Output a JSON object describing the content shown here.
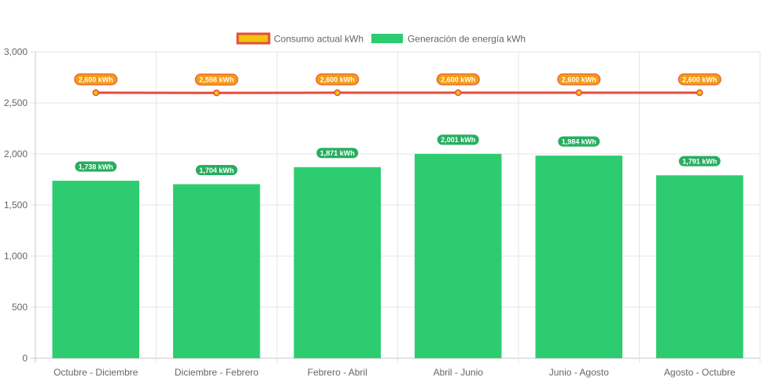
{
  "chart_data": {
    "type": "bar",
    "categories": [
      "Octubre - Diciembre",
      "Diciembre - Febrero",
      "Febrero - Abril",
      "Abril - Junio",
      "Junio - Agosto",
      "Agosto - Octubre"
    ],
    "series": [
      {
        "name": "Consumo actual kWh",
        "type": "line",
        "values": [
          2600,
          2598,
          2600,
          2600,
          2600,
          2600
        ],
        "data_labels": [
          "2,600 kWh",
          "2,598 kWh",
          "2,600 kWh",
          "2,600 kWh",
          "2,600 kWh",
          "2,600 kWh"
        ],
        "line_color": "#e74c3c",
        "fill_color": "#f1c40f",
        "label_color": "#f39c12"
      },
      {
        "name": "Generación de energía kWh",
        "type": "bar",
        "values": [
          1738,
          1704,
          1871,
          2001,
          1984,
          1791
        ],
        "data_labels": [
          "1,738 kWh",
          "1,704 kWh",
          "1,871 kWh",
          "2,001 kWh",
          "1,984 kWh",
          "1,791 kWh"
        ],
        "color": "#2ecc71",
        "label_color": "#27ae60"
      }
    ],
    "y_ticks": [
      "0",
      "500",
      "1,000",
      "1,500",
      "2,000",
      "2,500",
      "3,000"
    ],
    "ylim": [
      0,
      3000
    ],
    "grid": true,
    "legend_position": "top"
  }
}
